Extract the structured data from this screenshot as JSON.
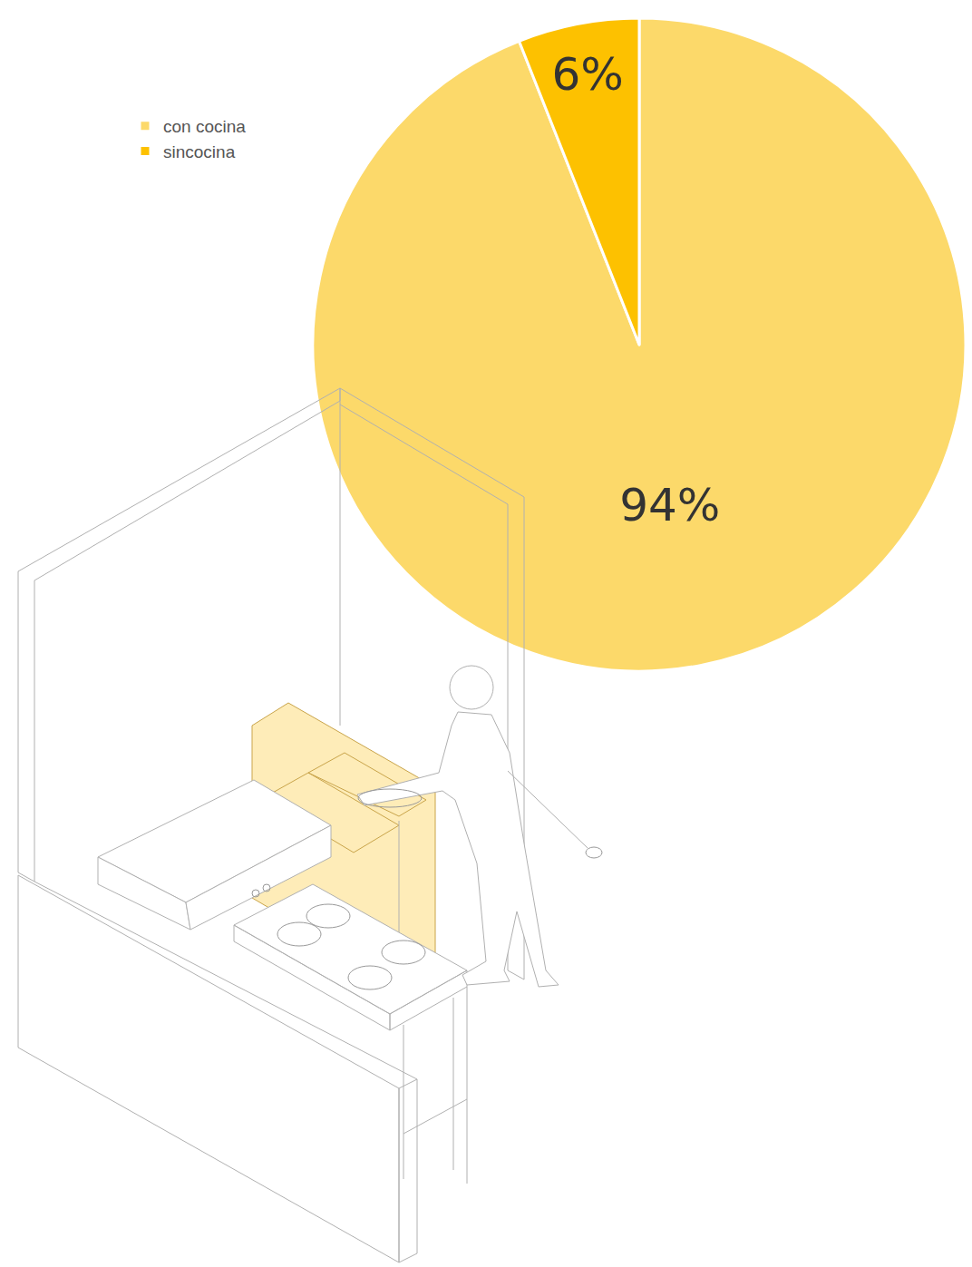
{
  "chart_data": {
    "type": "pie",
    "categories": [
      "con cocina",
      "sincocina"
    ],
    "values": [
      94,
      6
    ],
    "value_labels": [
      "94%",
      "6%"
    ],
    "colors": [
      "#fcd96a",
      "#fdc100"
    ],
    "data_labels": true,
    "legend": "top-left"
  }
}
